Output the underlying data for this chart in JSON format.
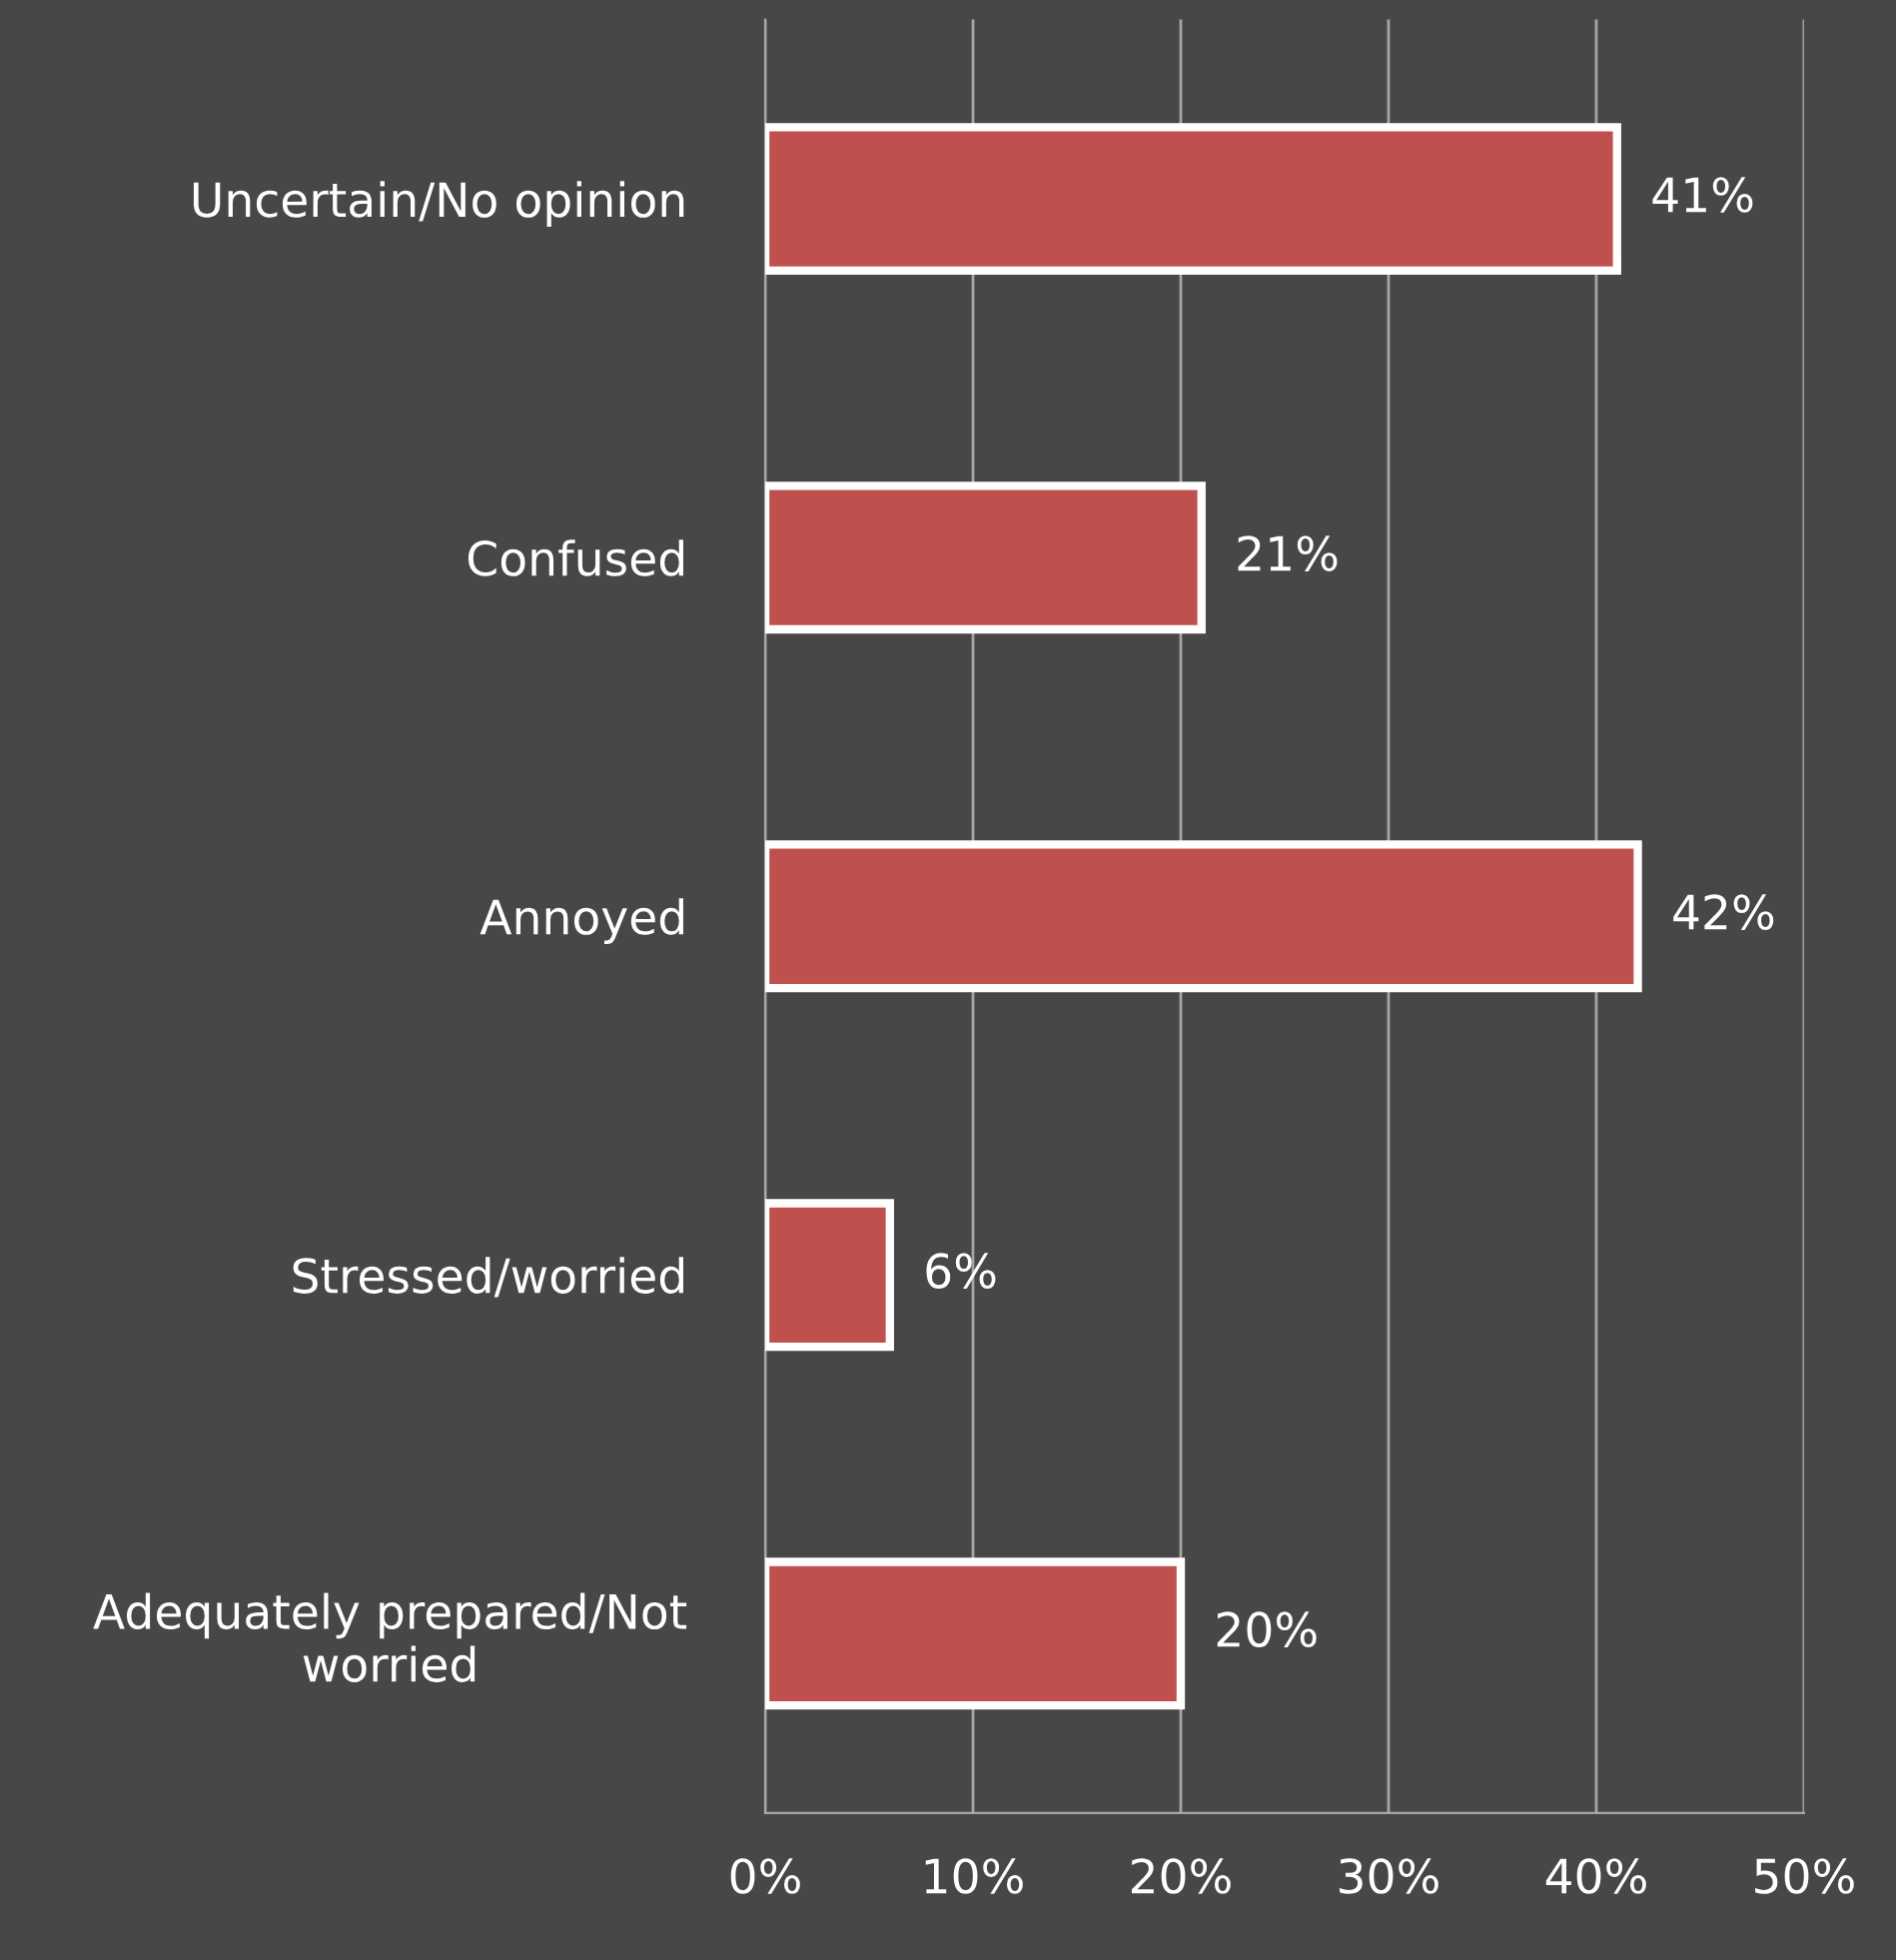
{
  "chart_data": {
    "type": "bar",
    "orientation": "horizontal",
    "categories": [
      "Uncertain/No opinion",
      "Confused",
      "Annoyed",
      "Stressed/worried",
      "Adequately prepared/Not\nworried"
    ],
    "values": [
      41,
      21,
      42,
      6,
      20
    ],
    "value_labels": [
      "41%",
      "21%",
      "42%",
      "6%",
      "20%"
    ],
    "color": "#c0504d",
    "xlim": [
      0,
      50
    ],
    "xticks": [
      {
        "value": 0,
        "label": "0%"
      },
      {
        "value": 10,
        "label": "10%"
      },
      {
        "value": 20,
        "label": "20%"
      },
      {
        "value": 30,
        "label": "30%"
      },
      {
        "value": 40,
        "label": "40%"
      },
      {
        "value": 50,
        "label": "50%"
      }
    ],
    "grid": "x",
    "legend": false
  }
}
